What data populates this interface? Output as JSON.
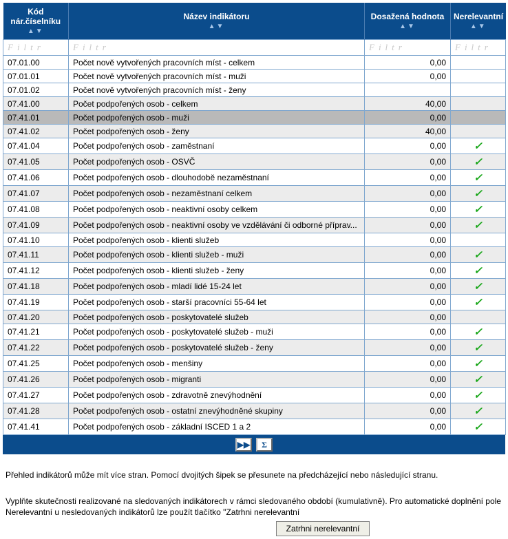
{
  "header": {
    "code": "Kód nár.číselníku",
    "name": "Název indikátoru",
    "value": "Dosažená hodnota",
    "rel": "Nerelevantní",
    "arrows": "▲▼"
  },
  "filter_placeholder": "Filtr",
  "rows": [
    {
      "code": "07.01.00",
      "name": "Počet nově vytvořených pracovních míst - celkem",
      "val": "0,00",
      "rel": false,
      "style": "row-light"
    },
    {
      "code": "07.01.01",
      "name": "Počet nově vytvořených pracovních míst - muži",
      "val": "0,00",
      "rel": false,
      "style": "row-light"
    },
    {
      "code": "07.01.02",
      "name": "Počet nově vytvořených pracovních míst - ženy",
      "val": "",
      "rel": false,
      "style": "row-light"
    },
    {
      "code": "07.41.00",
      "name": "Počet podpořených osob - celkem",
      "val": "40,00",
      "rel": false,
      "style": "row-alt"
    },
    {
      "code": "07.41.01",
      "name": "Počet podpořených osob - muži",
      "val": "0,00",
      "rel": false,
      "style": "row-sel"
    },
    {
      "code": "07.41.02",
      "name": "Počet podpořených osob - ženy",
      "val": "40,00",
      "rel": false,
      "style": "row-alt"
    },
    {
      "code": "07.41.04",
      "name": "Počet podpořených osob - zaměstnaní",
      "val": "0,00",
      "rel": true,
      "style": "row-light"
    },
    {
      "code": "07.41.05",
      "name": "Počet podpořených osob - OSVČ",
      "val": "0,00",
      "rel": true,
      "style": "row-alt"
    },
    {
      "code": "07.41.06",
      "name": "Počet podpořených osob - dlouhodobě nezaměstnaní",
      "val": "0,00",
      "rel": true,
      "style": "row-light"
    },
    {
      "code": "07.41.07",
      "name": "Počet podpořených osob - nezaměstnaní celkem",
      "val": "0,00",
      "rel": true,
      "style": "row-alt"
    },
    {
      "code": "07.41.08",
      "name": "Počet podpořených osob - neaktivní osoby celkem",
      "val": "0,00",
      "rel": true,
      "style": "row-light"
    },
    {
      "code": "07.41.09",
      "name": "Počet podpořených osob - neaktivní osoby ve vzdělávání či odborné příprav...",
      "val": "0,00",
      "rel": true,
      "style": "row-alt"
    },
    {
      "code": "07.41.10",
      "name": "Počet podpořených osob - klienti služeb",
      "val": "0,00",
      "rel": false,
      "style": "row-light"
    },
    {
      "code": "07.41.11",
      "name": "Počet podpořených osob - klienti služeb - muži",
      "val": "0,00",
      "rel": true,
      "style": "row-alt"
    },
    {
      "code": "07.41.12",
      "name": "Počet podpořených osob - klienti služeb - ženy",
      "val": "0,00",
      "rel": true,
      "style": "row-light"
    },
    {
      "code": "07.41.18",
      "name": "Počet podpořených osob - mladí lidé 15-24 let",
      "val": "0,00",
      "rel": true,
      "style": "row-alt"
    },
    {
      "code": "07.41.19",
      "name": "Počet podpořených osob - starší pracovníci 55-64 let",
      "val": "0,00",
      "rel": true,
      "style": "row-light"
    },
    {
      "code": "07.41.20",
      "name": "Počet podpořených osob - poskytovatelé služeb",
      "val": "0,00",
      "rel": false,
      "style": "row-alt"
    },
    {
      "code": "07.41.21",
      "name": "Počet podpořených osob - poskytovatelé služeb - muži",
      "val": "0,00",
      "rel": true,
      "style": "row-light"
    },
    {
      "code": "07.41.22",
      "name": "Počet podpořených osob - poskytovatelé služeb - ženy",
      "val": "0,00",
      "rel": true,
      "style": "row-alt"
    },
    {
      "code": "07.41.25",
      "name": "Počet podpořených osob - menšiny",
      "val": "0,00",
      "rel": true,
      "style": "row-light"
    },
    {
      "code": "07.41.26",
      "name": "Počet podpořených osob - migranti",
      "val": "0,00",
      "rel": true,
      "style": "row-alt"
    },
    {
      "code": "07.41.27",
      "name": "Počet podpořených osob - zdravotně znevýhodnění",
      "val": "0,00",
      "rel": true,
      "style": "row-light"
    },
    {
      "code": "07.41.28",
      "name": "Počet podpořených osob - ostatní znevýhodněné skupiny",
      "val": "0,00",
      "rel": true,
      "style": "row-alt"
    },
    {
      "code": "07.41.41",
      "name": "Počet podpořených osob - základní ISCED 1 a 2",
      "val": "0,00",
      "rel": true,
      "style": "row-light"
    }
  ],
  "paragraph1": "Přehled indikátorů může mít více stran. Pomocí dvojitých šipek se přesunete na předcházející nebo následující stranu.",
  "paragraph2": "Vyplňte skutečnosti realizované na sledovaných indikátorech v rámci sledovaného období (kumulativně). Pro automatické doplnění pole Nerelevantní u nesledovaných indikátorů lze použít tlačítko \"Zatrhni nerelevantní",
  "button_zatrhni": "Zatrhni nerelevantní",
  "nav_next": "▶▶",
  "nav_sum": "Σ"
}
